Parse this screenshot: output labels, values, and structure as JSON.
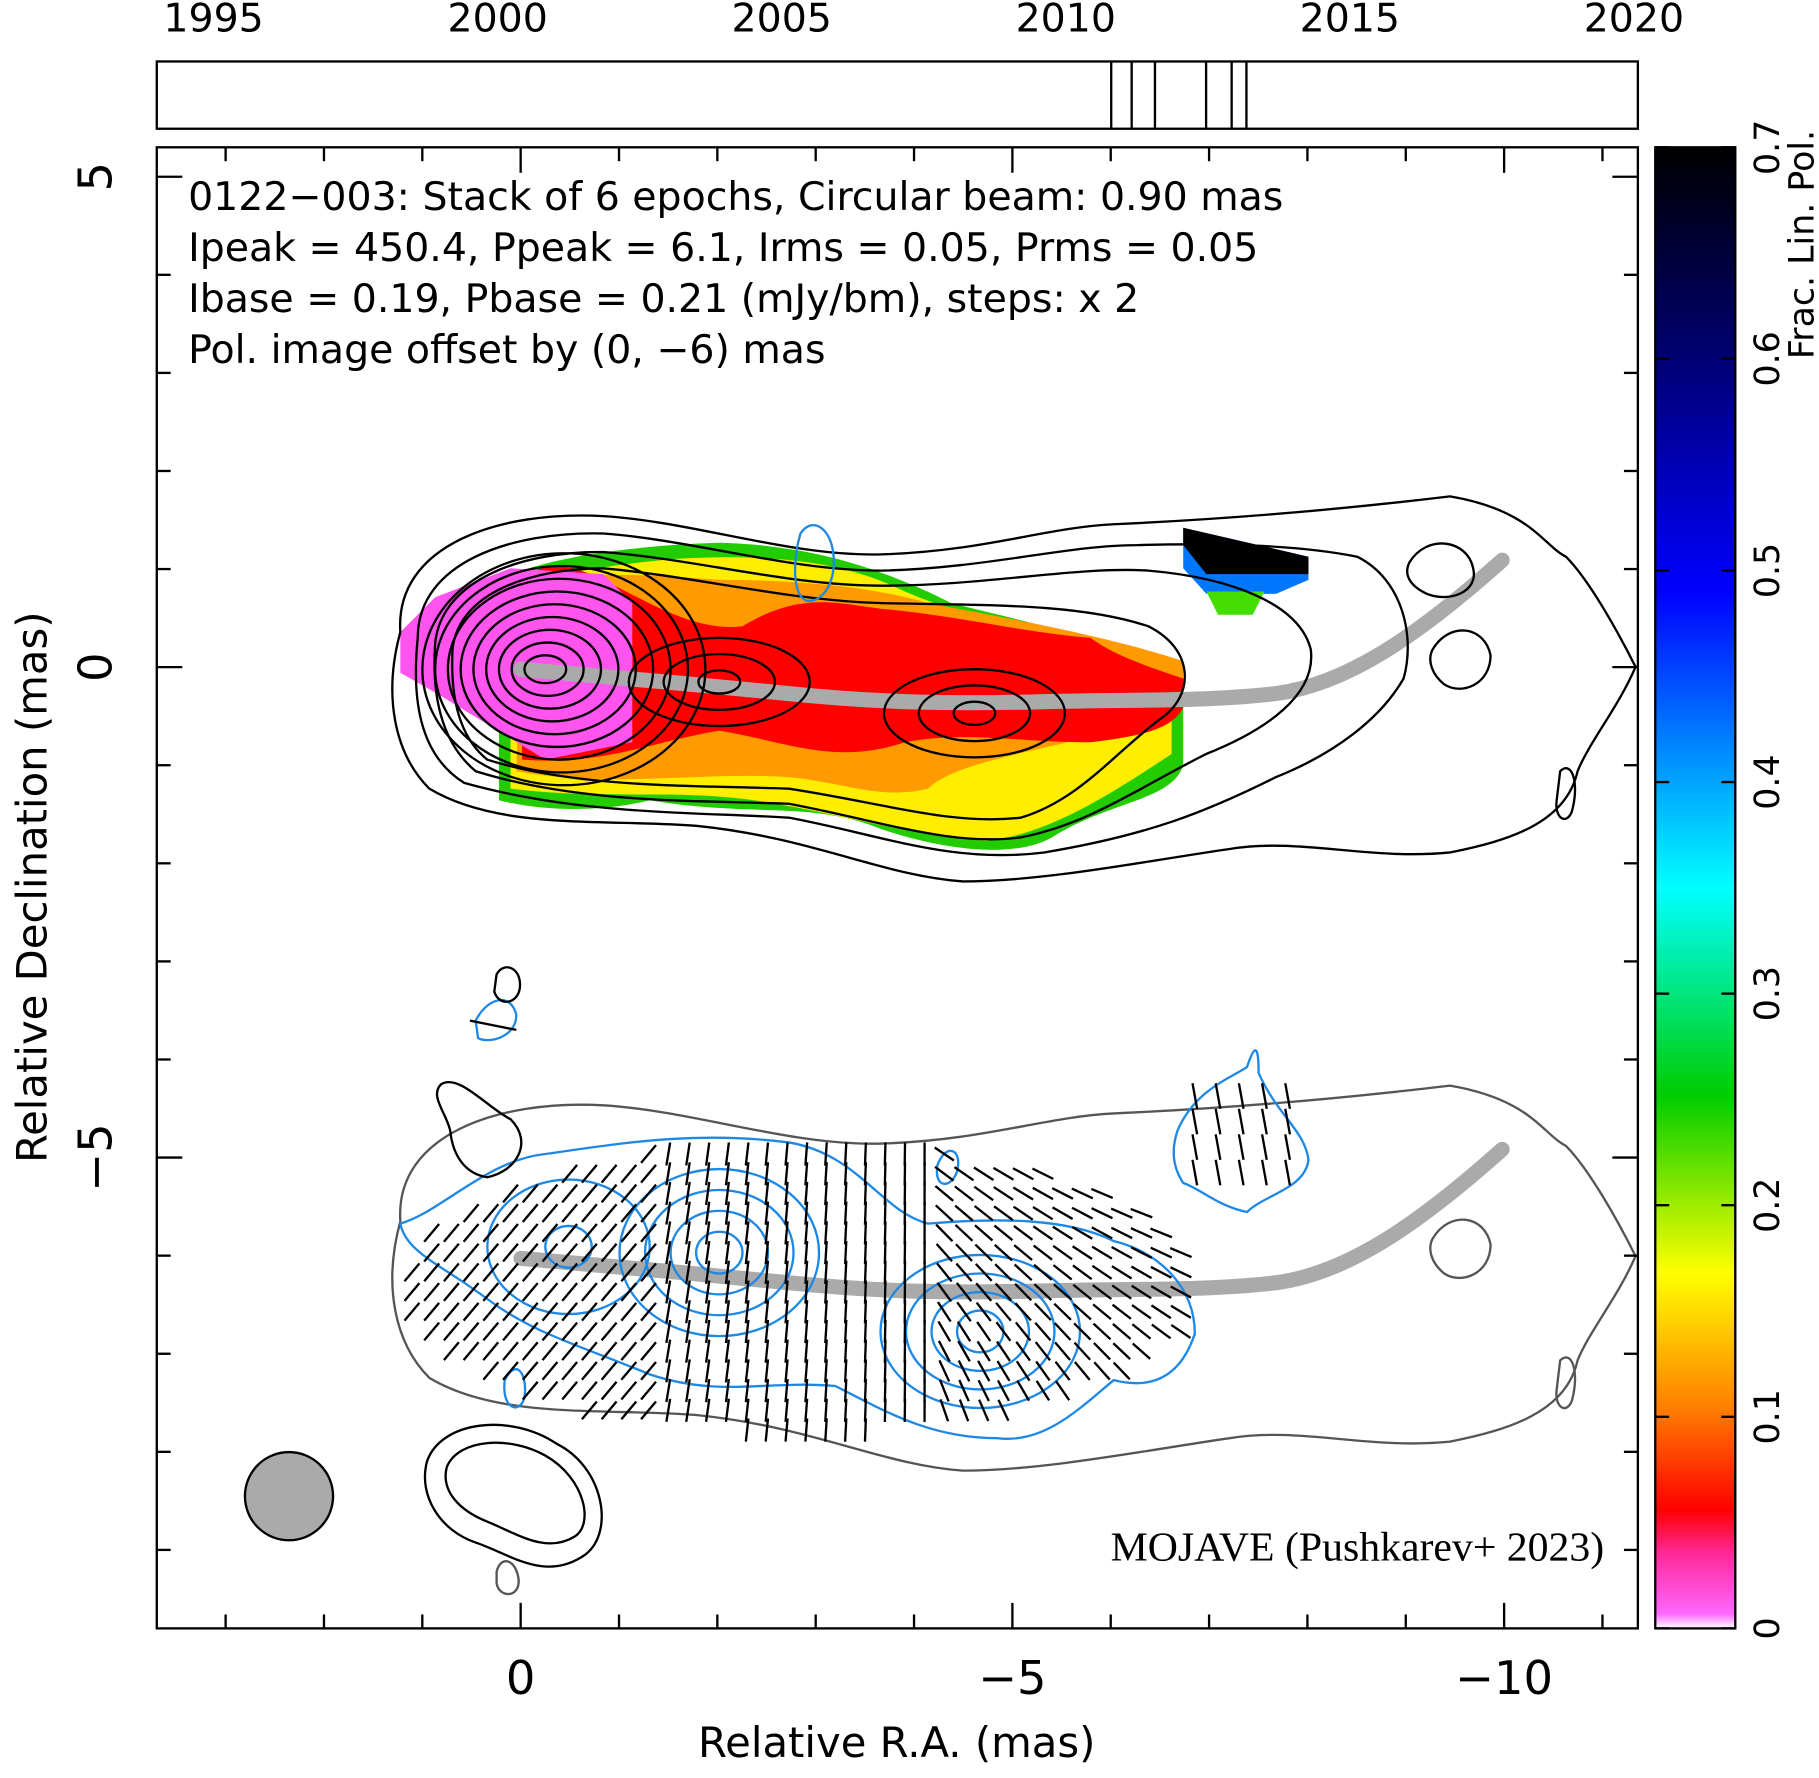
{
  "chart_data": [
    {
      "type": "timeline",
      "xlim": [
        1994,
        2020.07
      ],
      "xticks": [
        1995,
        2000,
        2005,
        2010,
        2015,
        2020
      ],
      "values": [
        2010.8,
        2011.16,
        2011.57,
        2012.47,
        2012.92,
        2013.18
      ]
    },
    {
      "type": "image",
      "xlabel": "Relative R.A. (mas)",
      "ylabel": "Relative Declination (mas)",
      "xlim": [
        3.7,
        -11.36
      ],
      "ylim": [
        -9.8,
        5.3
      ],
      "xticks": [
        0,
        {
          "value": -5,
          "label": "−5"
        },
        {
          "value": -10,
          "label": "−10"
        }
      ],
      "yticks": [
        5,
        0,
        {
          "value": -5,
          "label": "−5"
        }
      ],
      "xminorticks": [
        3,
        2,
        1,
        -1,
        -2,
        -3,
        -4,
        -6,
        -7,
        -8,
        -9,
        -11
      ],
      "yminorticks": [
        4,
        3,
        2,
        1,
        -1,
        -2,
        -3,
        -4,
        -6,
        -7,
        -8,
        -9
      ],
      "annotations": [
        {
          "text": "0122−003: Stack of 6 epochs, Circular beam: 0.90 mas",
          "color": "#000000"
        },
        {
          "text": "Ipeak = 450.4, Ppeak = 6.1, Irms = 0.05, Prms = 0.05",
          "color": "#000000"
        },
        {
          "text": "Ibase = 0.19, Pbase = 0.21 (mJy/bm), steps: x 2",
          "color": "#000000"
        },
        {
          "text": "Pol. image offset by (0, −6) mas",
          "color": "#1e88e5"
        }
      ],
      "credit": {
        "text": "MOJAVE (Pushkarev+ 2023)",
        "color": "#0000ee"
      },
      "colorbar": {
        "label": "Frac. Lin. Pol.",
        "lim": [
          0,
          0.7
        ],
        "ticks": [
          0,
          0.1,
          0.2,
          0.3,
          0.4,
          0.5,
          0.6,
          0.7
        ]
      }
    }
  ]
}
